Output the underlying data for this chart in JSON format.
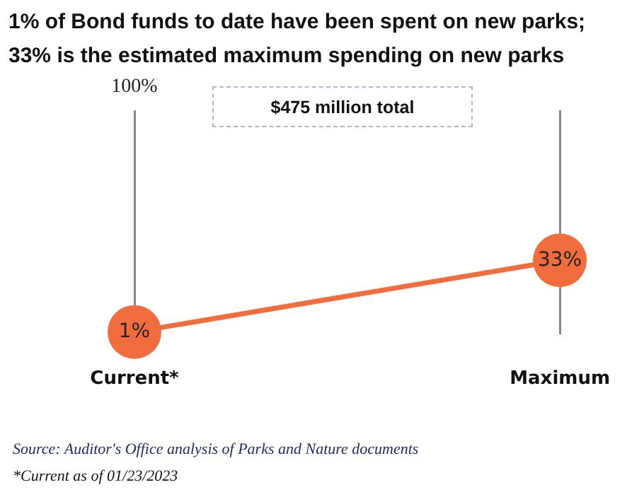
{
  "chart_data": {
    "type": "line",
    "title": "1% of Bond funds to date have been spent on new parks; 33% is the estimated maximum spending on new parks",
    "categories": [
      "Current*",
      "Maximum"
    ],
    "series": [
      {
        "color": "#f26d3d",
        "values": [
          1,
          33
        ],
        "value_labels": [
          "1%",
          "33%"
        ]
      }
    ],
    "ylim": [
      0,
      100
    ],
    "grid": "x",
    "marker": "circle",
    "annotations": [
      "100%",
      "$475 million total",
      "Source: Auditor's Office analysis of Parks and Nature documents",
      "*Current as of 01/23/2023"
    ]
  }
}
